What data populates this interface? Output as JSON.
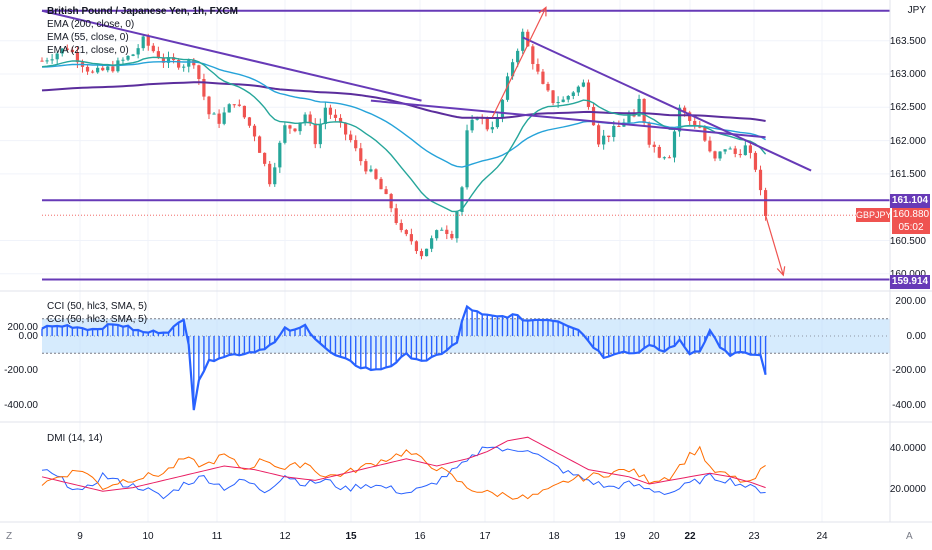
{
  "header": {
    "symbol_title": "British Pound / Japanese Yen, 1h, FXCM",
    "currency": "JPY",
    "ema_labels": [
      "EMA (200, close, 0)",
      "EMA (55, close, 0)",
      "EMA (21, close, 0)"
    ]
  },
  "price_axis": {
    "ticks": [
      "163.500",
      "163.000",
      "162.500",
      "162.000",
      "161.500",
      "160.500",
      "160.000"
    ],
    "tick_values": [
      163.5,
      163.0,
      162.5,
      162.0,
      161.5,
      160.5,
      160.0
    ]
  },
  "tags": {
    "resistance_level": "161.104",
    "support_level": "159.914",
    "current_price": "160.880",
    "countdown": "05:02",
    "symbol": "GBPJPY"
  },
  "cci_panel": {
    "labels": [
      "CCI (50, hlc3, SMA, 5)",
      "CCI (50, hlc3, SMA, 5)"
    ],
    "ticks": [
      "200.00",
      "0.00",
      "-200.00",
      "-400.00"
    ],
    "tick_values": [
      200,
      0,
      -200,
      -400
    ]
  },
  "dmi_panel": {
    "label": "DMI (14, 14)",
    "ticks": [
      "40.0000",
      "20.0000"
    ],
    "tick_values": [
      40,
      20
    ]
  },
  "time_axis": {
    "labels": [
      "9",
      "10",
      "11",
      "12",
      "15",
      "16",
      "17",
      "18",
      "19",
      "20",
      "22",
      "23",
      "24"
    ],
    "left_corner": "Z",
    "right_corner": "A"
  },
  "colors": {
    "trendline": "#673ab7",
    "ema200": "#5b2d9c",
    "ema55": "#26a3d9",
    "ema21": "#26a69a",
    "bull": "#26a69a",
    "bear": "#ef5350",
    "arrow": "#ef5350",
    "cci": "#2962ff",
    "dmi_plus": "#2962ff",
    "dmi_minus": "#ff6d00",
    "adx": "#e91e63"
  },
  "chart_data": {
    "type": "candlestick",
    "price_anchors": [
      [
        0,
        163.2
      ],
      [
        5,
        163.4
      ],
      [
        10,
        163.0
      ],
      [
        14,
        163.1
      ],
      [
        18,
        163.3
      ],
      [
        20,
        163.5
      ],
      [
        24,
        163.2
      ],
      [
        28,
        163.15
      ],
      [
        30,
        163.2
      ],
      [
        33,
        162.4
      ],
      [
        35,
        162.3
      ],
      [
        38,
        162.6
      ],
      [
        42,
        162.1
      ],
      [
        45,
        161.4
      ],
      [
        48,
        162.2
      ],
      [
        50,
        162.2
      ],
      [
        52,
        162.4
      ],
      [
        54,
        162.0
      ],
      [
        56,
        162.5
      ],
      [
        58,
        162.3
      ],
      [
        61,
        162.0
      ],
      [
        63,
        161.7
      ],
      [
        66,
        161.4
      ],
      [
        69,
        161.0
      ],
      [
        71,
        160.6
      ],
      [
        73,
        160.5
      ],
      [
        75,
        160.3
      ],
      [
        77,
        160.5
      ],
      [
        79,
        160.7
      ],
      [
        81,
        160.6
      ],
      [
        83,
        161.3
      ],
      [
        84,
        162.1
      ],
      [
        86,
        162.4
      ],
      [
        88,
        162.2
      ],
      [
        90,
        162.3
      ],
      [
        91,
        162.6
      ],
      [
        93,
        163.2
      ],
      [
        95,
        163.6
      ],
      [
        97,
        163.2
      ],
      [
        99,
        162.8
      ],
      [
        101,
        162.6
      ],
      [
        103,
        162.6
      ],
      [
        105,
        162.75
      ],
      [
        107,
        162.85
      ],
      [
        109,
        162.3
      ],
      [
        110,
        162.0
      ],
      [
        112,
        162.1
      ],
      [
        114,
        162.2
      ],
      [
        116,
        162.4
      ],
      [
        117,
        162.3
      ],
      [
        118,
        162.6
      ],
      [
        120,
        162.0
      ],
      [
        122,
        161.8
      ],
      [
        124,
        161.8
      ],
      [
        126,
        162.5
      ],
      [
        128,
        162.3
      ],
      [
        130,
        162.2
      ],
      [
        132,
        161.8
      ],
      [
        133,
        161.7
      ],
      [
        135,
        161.9
      ],
      [
        137,
        161.8
      ],
      [
        139,
        161.9
      ],
      [
        141,
        161.6
      ],
      [
        142,
        161.2
      ],
      [
        143,
        160.88
      ]
    ],
    "horizontal_levels": [
      163.95,
      161.104,
      159.914
    ],
    "trendlines": [
      {
        "from": [
          0,
          163.95
        ],
        "to": [
          75,
          162.6
        ]
      },
      {
        "from": [
          65,
          162.6
        ],
        "to": [
          143,
          162.05
        ]
      },
      {
        "from": [
          95,
          163.55
        ],
        "to": [
          152,
          161.55
        ]
      }
    ],
    "cci_anchors": [
      [
        0,
        50
      ],
      [
        5,
        60
      ],
      [
        10,
        40
      ],
      [
        15,
        70
      ],
      [
        20,
        20
      ],
      [
        25,
        30
      ],
      [
        28,
        90
      ],
      [
        29,
        -40
      ],
      [
        30,
        -420
      ],
      [
        31,
        -250
      ],
      [
        33,
        -150
      ],
      [
        35,
        -120
      ],
      [
        40,
        -100
      ],
      [
        43,
        -80
      ],
      [
        46,
        -40
      ],
      [
        48,
        40
      ],
      [
        50,
        30
      ],
      [
        52,
        60
      ],
      [
        54,
        -10
      ],
      [
        57,
        -100
      ],
      [
        60,
        -140
      ],
      [
        63,
        -180
      ],
      [
        66,
        -200
      ],
      [
        69,
        -170
      ],
      [
        72,
        -110
      ],
      [
        76,
        -150
      ],
      [
        80,
        -80
      ],
      [
        82,
        -40
      ],
      [
        83,
        80
      ],
      [
        84,
        170
      ],
      [
        87,
        120
      ],
      [
        90,
        110
      ],
      [
        93,
        120
      ],
      [
        96,
        90
      ],
      [
        99,
        100
      ],
      [
        102,
        90
      ],
      [
        106,
        40
      ],
      [
        109,
        -60
      ],
      [
        111,
        -120
      ],
      [
        114,
        -90
      ],
      [
        117,
        -100
      ],
      [
        120,
        -60
      ],
      [
        123,
        -90
      ],
      [
        126,
        -30
      ],
      [
        128,
        -100
      ],
      [
        130,
        -80
      ],
      [
        132,
        30
      ],
      [
        134,
        -60
      ],
      [
        136,
        -120
      ],
      [
        138,
        -90
      ],
      [
        140,
        -110
      ],
      [
        142,
        -120
      ],
      [
        143,
        -230
      ]
    ],
    "dmi_plus_anchors": [
      [
        0,
        28
      ],
      [
        4,
        22
      ],
      [
        8,
        15
      ],
      [
        12,
        25
      ],
      [
        16,
        20
      ],
      [
        20,
        18
      ],
      [
        24,
        12
      ],
      [
        28,
        20
      ],
      [
        32,
        24
      ],
      [
        36,
        18
      ],
      [
        40,
        22
      ],
      [
        44,
        16
      ],
      [
        48,
        25
      ],
      [
        52,
        20
      ],
      [
        56,
        22
      ],
      [
        60,
        17
      ],
      [
        64,
        20
      ],
      [
        68,
        18
      ],
      [
        72,
        15
      ],
      [
        76,
        18
      ],
      [
        80,
        25
      ],
      [
        84,
        32
      ],
      [
        88,
        42
      ],
      [
        92,
        38
      ],
      [
        96,
        40
      ],
      [
        100,
        32
      ],
      [
        104,
        26
      ],
      [
        108,
        22
      ],
      [
        112,
        18
      ],
      [
        116,
        20
      ],
      [
        120,
        17
      ],
      [
        124,
        15
      ],
      [
        128,
        20
      ],
      [
        132,
        24
      ],
      [
        136,
        22
      ],
      [
        140,
        18
      ],
      [
        143,
        16
      ]
    ],
    "dmi_minus_anchors": [
      [
        0,
        20
      ],
      [
        4,
        25
      ],
      [
        8,
        28
      ],
      [
        12,
        18
      ],
      [
        16,
        22
      ],
      [
        20,
        24
      ],
      [
        24,
        26
      ],
      [
        28,
        34
      ],
      [
        32,
        30
      ],
      [
        36,
        36
      ],
      [
        40,
        28
      ],
      [
        44,
        34
      ],
      [
        48,
        28
      ],
      [
        52,
        32
      ],
      [
        56,
        24
      ],
      [
        60,
        26
      ],
      [
        64,
        30
      ],
      [
        68,
        34
      ],
      [
        72,
        38
      ],
      [
        76,
        32
      ],
      [
        80,
        26
      ],
      [
        84,
        18
      ],
      [
        88,
        15
      ],
      [
        92,
        14
      ],
      [
        96,
        12
      ],
      [
        100,
        16
      ],
      [
        104,
        22
      ],
      [
        108,
        24
      ],
      [
        112,
        26
      ],
      [
        116,
        28
      ],
      [
        120,
        22
      ],
      [
        124,
        24
      ],
      [
        128,
        36
      ],
      [
        130,
        40
      ],
      [
        132,
        28
      ],
      [
        136,
        24
      ],
      [
        140,
        20
      ],
      [
        143,
        30
      ]
    ],
    "adx_anchors": [
      [
        0,
        24
      ],
      [
        6,
        20
      ],
      [
        12,
        16
      ],
      [
        18,
        18
      ],
      [
        24,
        22
      ],
      [
        30,
        26
      ],
      [
        36,
        30
      ],
      [
        42,
        28
      ],
      [
        48,
        24
      ],
      [
        54,
        22
      ],
      [
        60,
        26
      ],
      [
        66,
        30
      ],
      [
        72,
        34
      ],
      [
        78,
        30
      ],
      [
        84,
        34
      ],
      [
        88,
        38
      ],
      [
        92,
        44
      ],
      [
        96,
        46
      ],
      [
        100,
        40
      ],
      [
        104,
        34
      ],
      [
        108,
        28
      ],
      [
        112,
        26
      ],
      [
        116,
        24
      ],
      [
        120,
        20
      ],
      [
        124,
        22
      ],
      [
        128,
        24
      ],
      [
        132,
        26
      ],
      [
        136,
        24
      ],
      [
        140,
        21
      ],
      [
        143,
        18
      ]
    ]
  }
}
